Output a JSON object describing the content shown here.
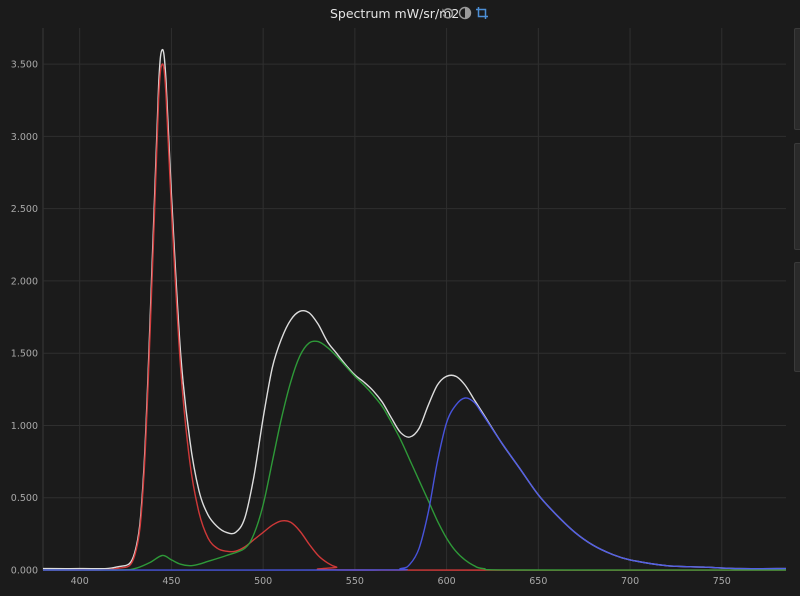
{
  "header": {
    "title": "Spectrum mW/sr/m2",
    "icons": [
      "reset-icon",
      "contrast-icon",
      "crop-icon"
    ],
    "accent_color": "#4d8fd6"
  },
  "chart_data": {
    "type": "line",
    "title": "Spectrum mW/sr/m2",
    "xlabel": "",
    "ylabel": "",
    "xlim": [
      380,
      785
    ],
    "ylim": [
      0,
      3.75
    ],
    "x_ticks": [
      "400",
      "450",
      "500",
      "550",
      "600",
      "650",
      "700",
      "750"
    ],
    "y_ticks": [
      "0.000",
      "0.500",
      "1.000",
      "1.500",
      "2.000",
      "2.500",
      "3.000",
      "3.500"
    ],
    "grid": true,
    "legend": "none",
    "series": [
      {
        "color": "#e8e8e8",
        "points": [
          [
            380,
            0.01
          ],
          [
            400,
            0.01
          ],
          [
            420,
            0.02
          ],
          [
            430,
            0.12
          ],
          [
            435,
            0.7
          ],
          [
            440,
            2.3
          ],
          [
            443,
            3.35
          ],
          [
            445,
            3.6
          ],
          [
            447,
            3.4
          ],
          [
            450,
            2.6
          ],
          [
            455,
            1.5
          ],
          [
            460,
            0.9
          ],
          [
            465,
            0.55
          ],
          [
            470,
            0.38
          ],
          [
            475,
            0.3
          ],
          [
            480,
            0.26
          ],
          [
            485,
            0.26
          ],
          [
            490,
            0.36
          ],
          [
            495,
            0.65
          ],
          [
            500,
            1.05
          ],
          [
            505,
            1.4
          ],
          [
            510,
            1.6
          ],
          [
            515,
            1.73
          ],
          [
            520,
            1.79
          ],
          [
            525,
            1.78
          ],
          [
            530,
            1.7
          ],
          [
            535,
            1.58
          ],
          [
            540,
            1.5
          ],
          [
            545,
            1.42
          ],
          [
            550,
            1.35
          ],
          [
            555,
            1.3
          ],
          [
            560,
            1.24
          ],
          [
            565,
            1.16
          ],
          [
            570,
            1.05
          ],
          [
            575,
            0.95
          ],
          [
            580,
            0.92
          ],
          [
            585,
            0.98
          ],
          [
            590,
            1.14
          ],
          [
            595,
            1.28
          ],
          [
            600,
            1.34
          ],
          [
            605,
            1.34
          ],
          [
            610,
            1.28
          ],
          [
            615,
            1.18
          ],
          [
            620,
            1.08
          ],
          [
            630,
            0.88
          ],
          [
            640,
            0.7
          ],
          [
            650,
            0.52
          ],
          [
            660,
            0.38
          ],
          [
            670,
            0.26
          ],
          [
            680,
            0.17
          ],
          [
            690,
            0.11
          ],
          [
            700,
            0.07
          ],
          [
            720,
            0.03
          ],
          [
            740,
            0.02
          ],
          [
            760,
            0.01
          ],
          [
            785,
            0.01
          ]
        ]
      },
      {
        "color": "#d83a3a",
        "points": [
          [
            380,
            0.0
          ],
          [
            400,
            0.0
          ],
          [
            420,
            0.01
          ],
          [
            430,
            0.1
          ],
          [
            435,
            0.65
          ],
          [
            440,
            2.2
          ],
          [
            443,
            3.25
          ],
          [
            445,
            3.5
          ],
          [
            447,
            3.3
          ],
          [
            450,
            2.5
          ],
          [
            455,
            1.4
          ],
          [
            460,
            0.75
          ],
          [
            465,
            0.4
          ],
          [
            470,
            0.22
          ],
          [
            475,
            0.15
          ],
          [
            480,
            0.13
          ],
          [
            485,
            0.13
          ],
          [
            490,
            0.16
          ],
          [
            495,
            0.21
          ],
          [
            500,
            0.26
          ],
          [
            505,
            0.31
          ],
          [
            510,
            0.34
          ],
          [
            515,
            0.33
          ],
          [
            520,
            0.27
          ],
          [
            525,
            0.18
          ],
          [
            530,
            0.1
          ],
          [
            535,
            0.05
          ],
          [
            540,
            0.02
          ],
          [
            550,
            0.0
          ],
          [
            785,
            0.0
          ]
        ]
      },
      {
        "color": "#2fa03a",
        "points": [
          [
            380,
            0.0
          ],
          [
            420,
            0.0
          ],
          [
            430,
            0.01
          ],
          [
            438,
            0.05
          ],
          [
            445,
            0.1
          ],
          [
            450,
            0.07
          ],
          [
            455,
            0.04
          ],
          [
            460,
            0.03
          ],
          [
            465,
            0.04
          ],
          [
            470,
            0.06
          ],
          [
            480,
            0.1
          ],
          [
            490,
            0.15
          ],
          [
            495,
            0.25
          ],
          [
            500,
            0.45
          ],
          [
            505,
            0.75
          ],
          [
            510,
            1.05
          ],
          [
            515,
            1.3
          ],
          [
            520,
            1.48
          ],
          [
            525,
            1.57
          ],
          [
            530,
            1.58
          ],
          [
            535,
            1.54
          ],
          [
            540,
            1.48
          ],
          [
            545,
            1.41
          ],
          [
            550,
            1.34
          ],
          [
            555,
            1.28
          ],
          [
            560,
            1.21
          ],
          [
            565,
            1.13
          ],
          [
            570,
            1.02
          ],
          [
            575,
            0.9
          ],
          [
            580,
            0.76
          ],
          [
            585,
            0.62
          ],
          [
            590,
            0.48
          ],
          [
            595,
            0.34
          ],
          [
            600,
            0.22
          ],
          [
            605,
            0.13
          ],
          [
            610,
            0.07
          ],
          [
            615,
            0.03
          ],
          [
            620,
            0.01
          ],
          [
            640,
            0.0
          ],
          [
            785,
            0.0
          ]
        ]
      },
      {
        "color": "#4a56e6",
        "points": [
          [
            380,
            0.0
          ],
          [
            560,
            0.0
          ],
          [
            575,
            0.01
          ],
          [
            580,
            0.04
          ],
          [
            585,
            0.15
          ],
          [
            590,
            0.4
          ],
          [
            595,
            0.75
          ],
          [
            600,
            1.02
          ],
          [
            605,
            1.14
          ],
          [
            610,
            1.19
          ],
          [
            615,
            1.16
          ],
          [
            620,
            1.07
          ],
          [
            630,
            0.88
          ],
          [
            640,
            0.7
          ],
          [
            650,
            0.52
          ],
          [
            660,
            0.38
          ],
          [
            670,
            0.26
          ],
          [
            680,
            0.17
          ],
          [
            690,
            0.11
          ],
          [
            700,
            0.07
          ],
          [
            720,
            0.03
          ],
          [
            740,
            0.02
          ],
          [
            760,
            0.01
          ],
          [
            785,
            0.01
          ]
        ]
      }
    ]
  }
}
